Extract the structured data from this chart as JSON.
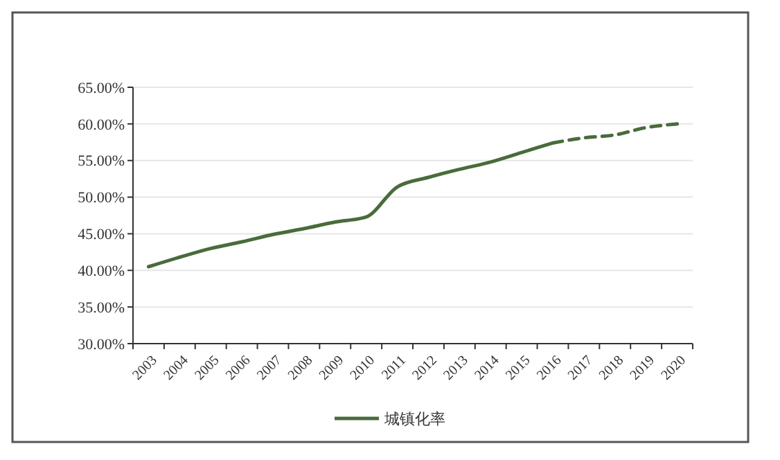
{
  "chart_data": {
    "type": "line",
    "categories": [
      "2003",
      "2004",
      "2005",
      "2006",
      "2007",
      "2008",
      "2009",
      "2010",
      "2011",
      "2012",
      "2013",
      "2014",
      "2015",
      "2016",
      "2017",
      "2018",
      "2019",
      "2020"
    ],
    "series": [
      {
        "name": "城镇化率",
        "color": "#4a6b3c",
        "line_style": "solid",
        "values": [
          40.5,
          41.8,
          43.0,
          43.9,
          44.9,
          45.7,
          46.6,
          47.3,
          51.4,
          52.7,
          53.8,
          54.8,
          56.1,
          57.4,
          null,
          null,
          null,
          null
        ]
      },
      {
        "color": "#4a6b3c",
        "line_style": "dashed",
        "values": [
          null,
          null,
          null,
          null,
          null,
          null,
          null,
          null,
          null,
          null,
          null,
          null,
          null,
          57.4,
          58.1,
          58.5,
          59.5,
          60.0
        ]
      }
    ],
    "ylim": [
      30,
      65
    ],
    "yticks": [
      {
        "value": 30,
        "label": "30.00%"
      },
      {
        "value": 35,
        "label": "35.00%"
      },
      {
        "value": 40,
        "label": "40.00%"
      },
      {
        "value": 45,
        "label": "45.00%"
      },
      {
        "value": 50,
        "label": "50.00%"
      },
      {
        "value": 55,
        "label": "55.00%"
      },
      {
        "value": 60,
        "label": "60.00%"
      },
      {
        "value": 65,
        "label": "65.00%"
      }
    ],
    "grid": "y",
    "legend": "bottom",
    "marker": "none"
  }
}
